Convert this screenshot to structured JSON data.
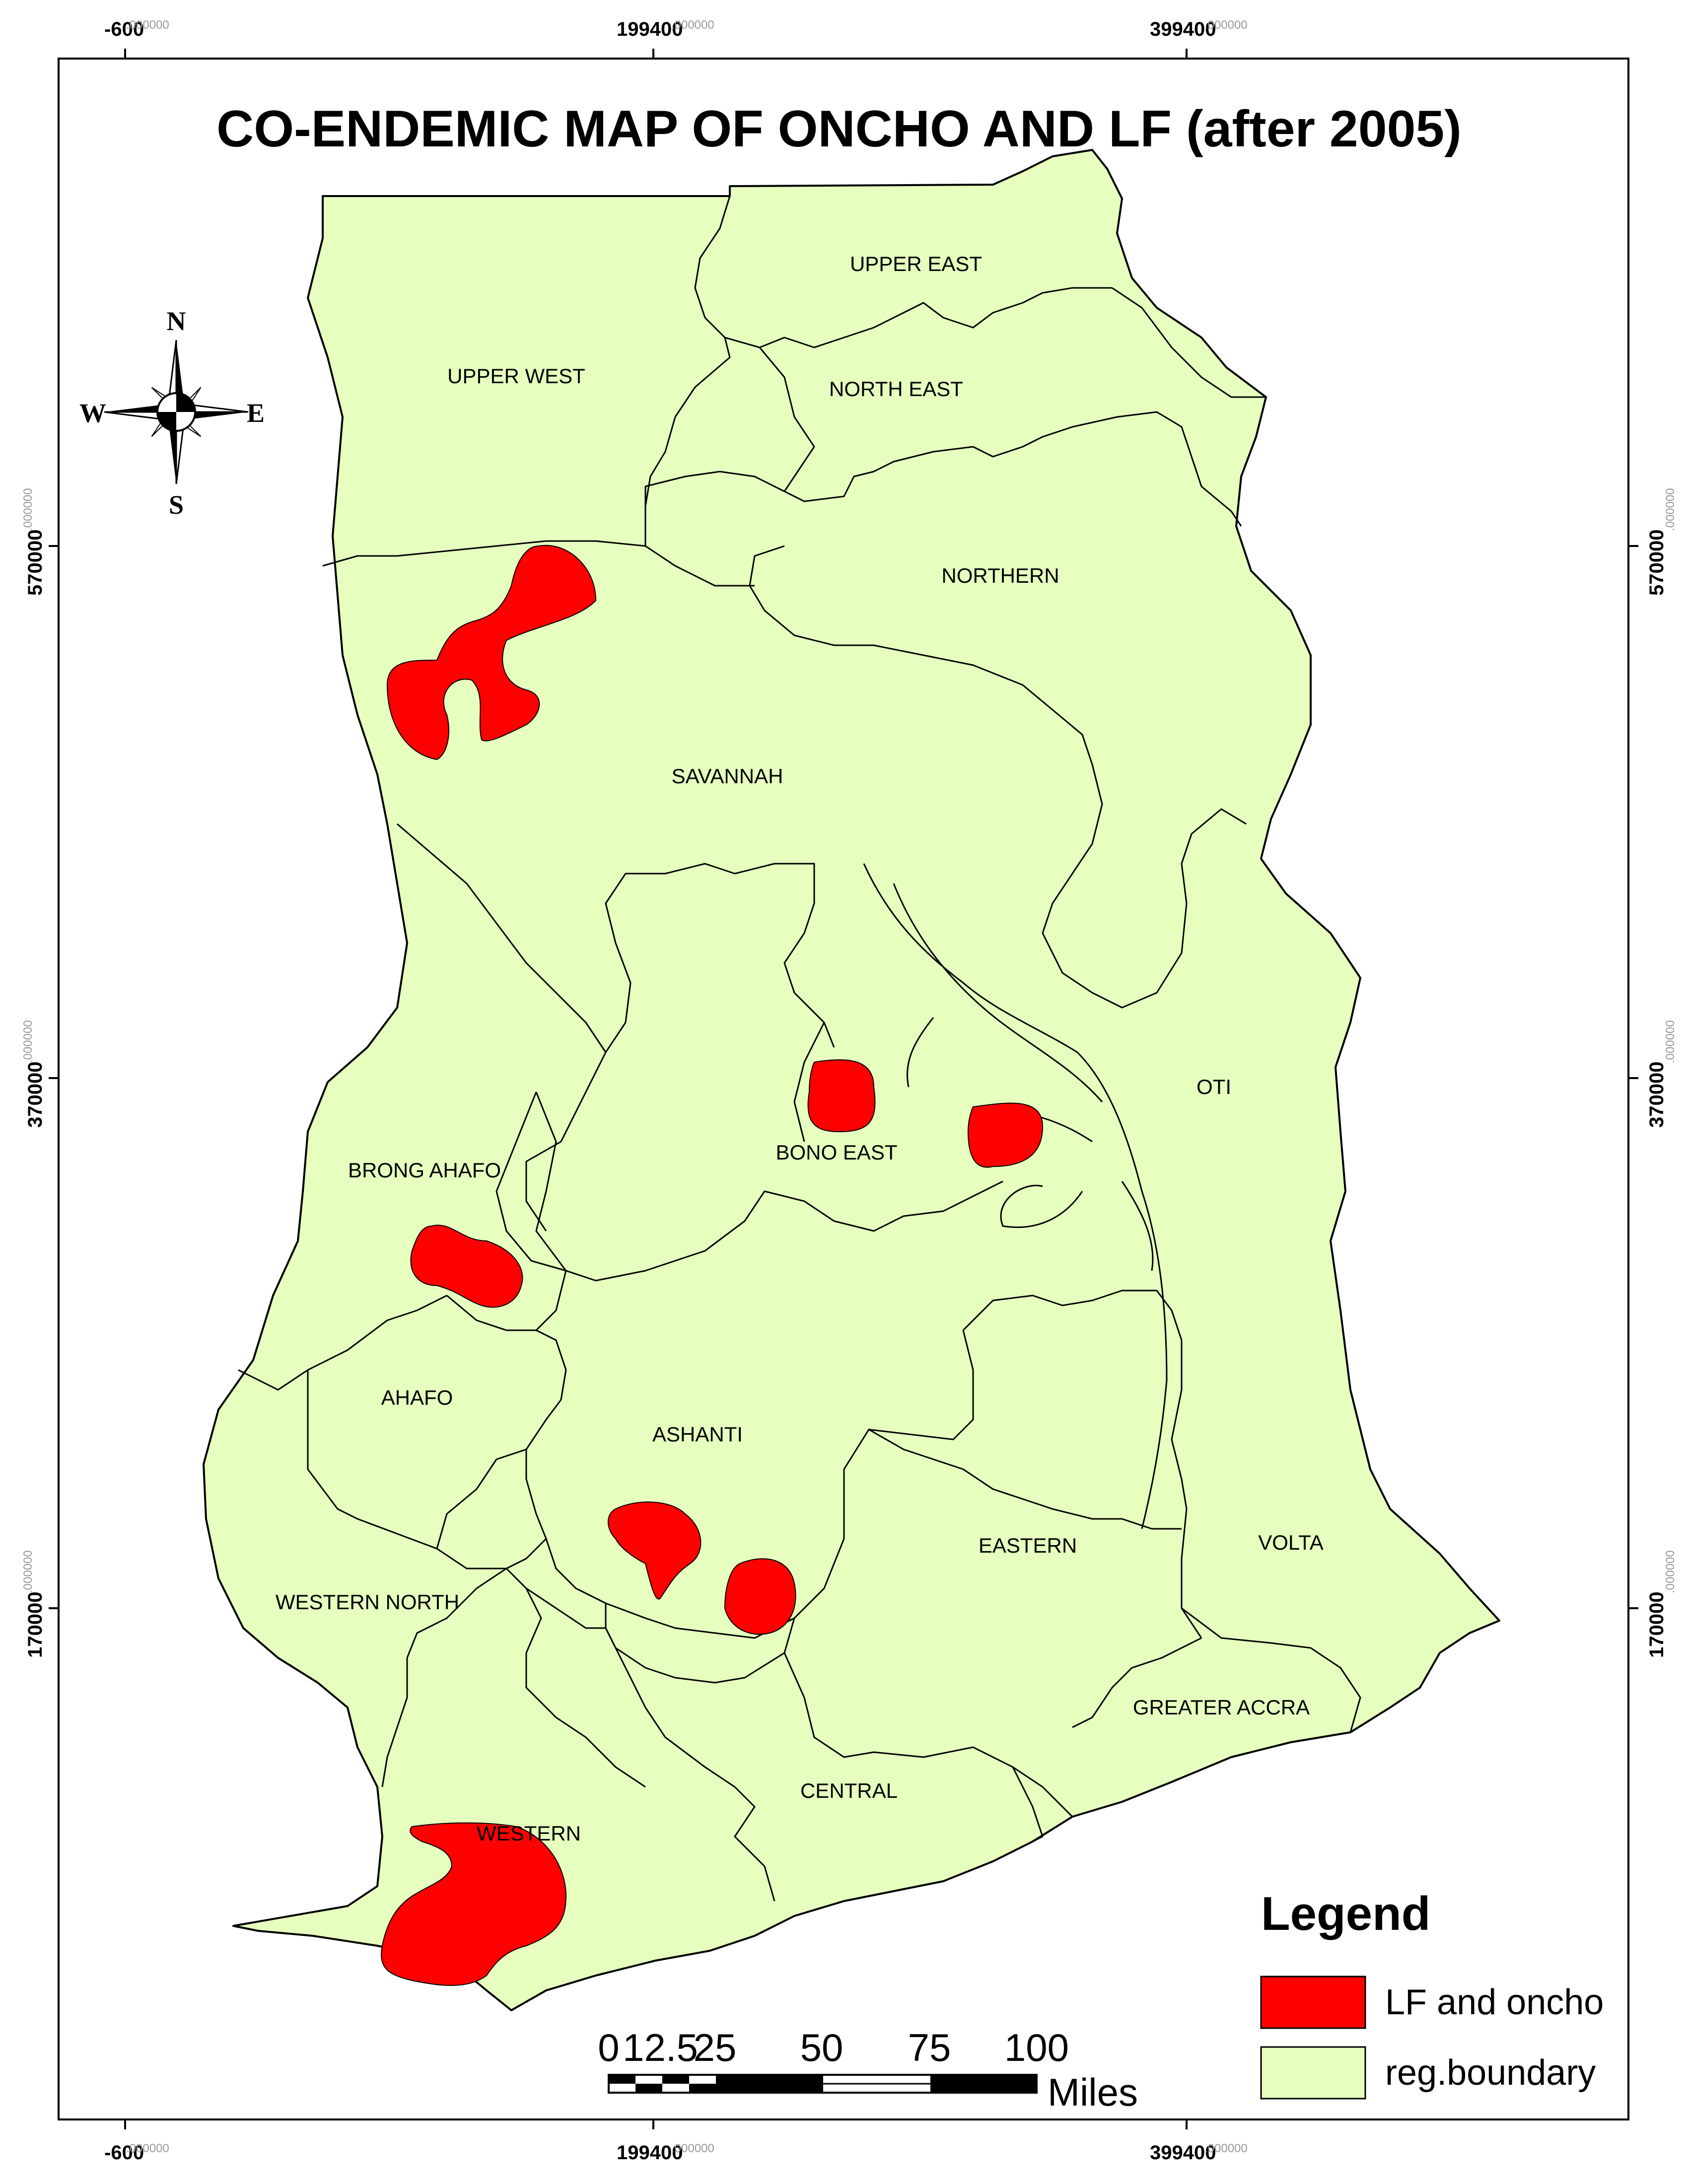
{
  "title": "CO-ENDEMIC MAP OF ONCHO AND LF (after 2005)",
  "colors": {
    "land": "#e6ffbe",
    "endemic": "#ff0000",
    "border": "#000000"
  },
  "grid": {
    "x_ticks": [
      {
        "main": "-600",
        "dec": ".000000"
      },
      {
        "main": "199400",
        "dec": ".000000"
      },
      {
        "main": "399400",
        "dec": ".000000"
      }
    ],
    "y_ticks": [
      {
        "main": "570000",
        "dec": ".000000"
      },
      {
        "main": "370000",
        "dec": ".000000"
      },
      {
        "main": "170000",
        "dec": ".000000"
      }
    ]
  },
  "regions": [
    "UPPER EAST",
    "UPPER WEST",
    "NORTH EAST",
    "NORTHERN",
    "SAVANNAH",
    "OTI",
    "BONO EAST",
    "BRONG AHAFO",
    "AHAFO",
    "ASHANTI",
    "EASTERN",
    "VOLTA",
    "WESTERN NORTH",
    "GREATER ACCRA",
    "CENTRAL",
    "WESTERN"
  ],
  "compass": {
    "n": "N",
    "s": "S",
    "e": "E",
    "w": "W"
  },
  "legend": {
    "title": "Legend",
    "items": [
      {
        "label": "LF and oncho",
        "color": "#ff0000",
        "icon": "red-swatch"
      },
      {
        "label": "reg.boundary",
        "color": "#e6ffbe",
        "icon": "green-swatch"
      }
    ]
  },
  "scale_bar": {
    "labels": [
      "0",
      "12.5",
      "25",
      "50",
      "75",
      "100"
    ],
    "unit": "Miles"
  }
}
